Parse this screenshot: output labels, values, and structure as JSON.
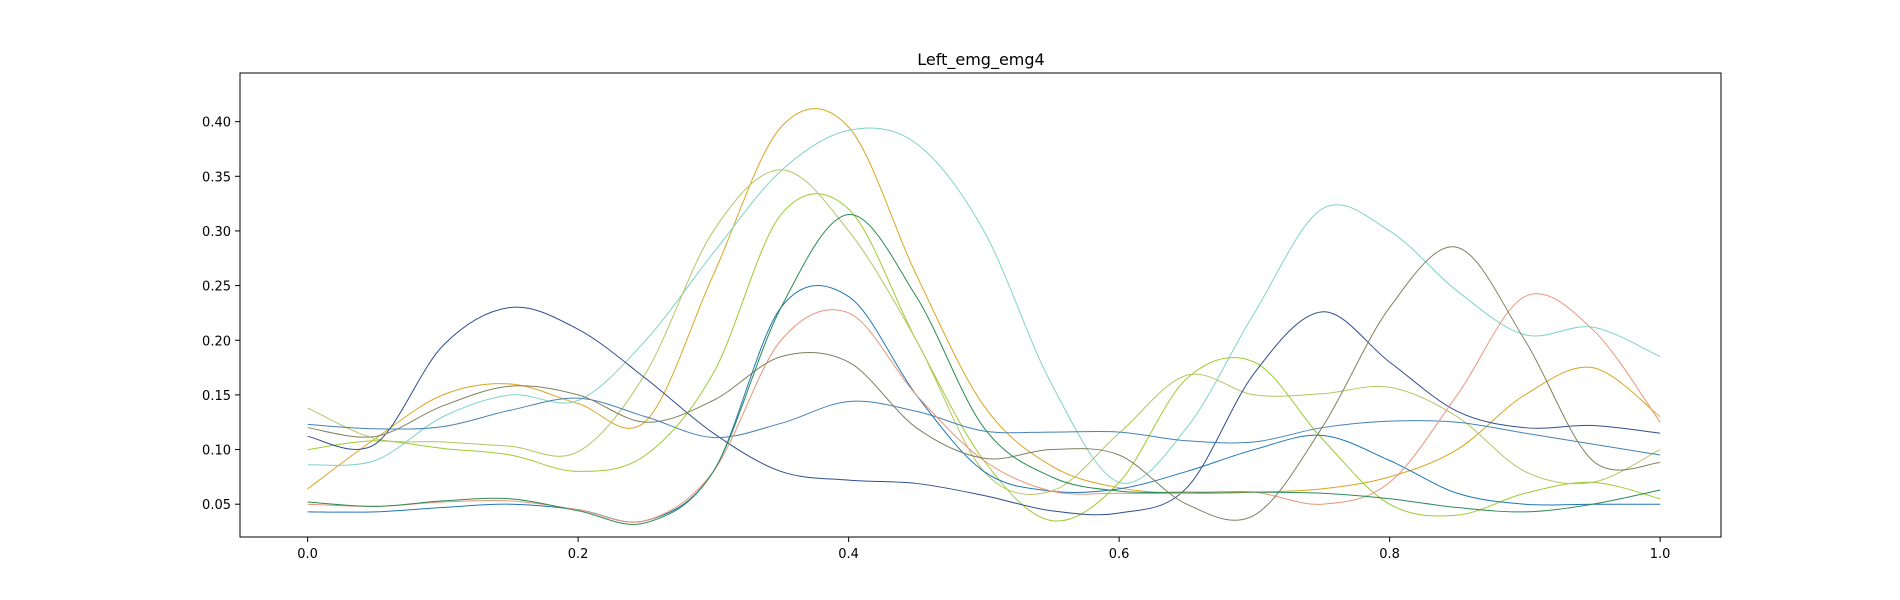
{
  "chart_data": {
    "type": "line",
    "title": "Left_emg_emg4",
    "xlabel": "",
    "ylabel": "",
    "xlim": [
      -0.05,
      1.045
    ],
    "ylim": [
      0.02,
      0.4445
    ],
    "x_ticks": [
      0.0,
      0.2,
      0.4,
      0.6,
      0.8,
      1.0
    ],
    "x_tick_labels": [
      "0.0",
      "0.2",
      "0.4",
      "0.6",
      "0.8",
      "1.0"
    ],
    "y_ticks": [
      0.05,
      0.1,
      0.15,
      0.2,
      0.25,
      0.3,
      0.35,
      0.4
    ],
    "y_tick_labels": [
      "0.05",
      "0.10",
      "0.15",
      "0.20",
      "0.25",
      "0.30",
      "0.35",
      "0.40"
    ],
    "grid": false,
    "legend": "none",
    "x": [
      0.0,
      0.05,
      0.1,
      0.15,
      0.2,
      0.25,
      0.3,
      0.35,
      0.4,
      0.45,
      0.5,
      0.55,
      0.6,
      0.65,
      0.7,
      0.75,
      0.8,
      0.85,
      0.9,
      0.95,
      1.0
    ],
    "series": [
      {
        "color": "#daa520",
        "values": [
          0.064,
          0.11,
          0.15,
          0.16,
          0.142,
          0.126,
          0.26,
          0.395,
          0.395,
          0.26,
          0.14,
          0.085,
          0.065,
          0.06,
          0.061,
          0.064,
          0.075,
          0.1,
          0.15,
          0.175,
          0.13
        ]
      },
      {
        "color": "#7fd3c8",
        "values": [
          0.086,
          0.09,
          0.13,
          0.15,
          0.145,
          0.2,
          0.28,
          0.355,
          0.392,
          0.38,
          0.3,
          0.16,
          0.07,
          0.12,
          0.225,
          0.32,
          0.3,
          0.245,
          0.205,
          0.212,
          0.185
        ]
      },
      {
        "color": "#9acd32",
        "values": [
          0.1,
          0.108,
          0.101,
          0.095,
          0.08,
          0.095,
          0.17,
          0.315,
          0.32,
          0.2,
          0.09,
          0.035,
          0.07,
          0.165,
          0.18,
          0.11,
          0.05,
          0.04,
          0.06,
          0.07,
          0.055
        ]
      },
      {
        "color": "#b5c463",
        "values": [
          0.138,
          0.11,
          0.107,
          0.103,
          0.098,
          0.17,
          0.3,
          0.356,
          0.3,
          0.2,
          0.08,
          0.062,
          0.115,
          0.168,
          0.15,
          0.151,
          0.157,
          0.13,
          0.08,
          0.07,
          0.1
        ]
      },
      {
        "color": "#1f77b4",
        "values": [
          0.043,
          0.043,
          0.047,
          0.05,
          0.045,
          0.035,
          0.08,
          0.23,
          0.24,
          0.15,
          0.08,
          0.062,
          0.064,
          0.08,
          0.1,
          0.113,
          0.09,
          0.06,
          0.05,
          0.05,
          0.05
        ]
      },
      {
        "color": "#2f4f8f",
        "values": [
          0.112,
          0.105,
          0.195,
          0.23,
          0.21,
          0.165,
          0.115,
          0.08,
          0.072,
          0.069,
          0.058,
          0.044,
          0.042,
          0.065,
          0.17,
          0.226,
          0.18,
          0.135,
          0.12,
          0.122,
          0.115
        ]
      },
      {
        "color": "#4682b4",
        "values": [
          0.123,
          0.119,
          0.121,
          0.136,
          0.147,
          0.13,
          0.111,
          0.124,
          0.144,
          0.135,
          0.117,
          0.116,
          0.116,
          0.108,
          0.107,
          0.12,
          0.126,
          0.125,
          0.115,
          0.105,
          0.095
        ]
      },
      {
        "color": "#e9967a",
        "values": [
          0.05,
          0.048,
          0.052,
          0.053,
          0.045,
          0.035,
          0.08,
          0.2,
          0.225,
          0.15,
          0.09,
          0.062,
          0.06,
          0.06,
          0.061,
          0.05,
          0.07,
          0.15,
          0.24,
          0.21,
          0.125
        ]
      },
      {
        "color": "#808060",
        "values": [
          0.12,
          0.112,
          0.14,
          0.158,
          0.15,
          0.125,
          0.145,
          0.185,
          0.18,
          0.12,
          0.092,
          0.1,
          0.095,
          0.05,
          0.04,
          0.12,
          0.23,
          0.285,
          0.2,
          0.09,
          0.088
        ]
      },
      {
        "color": "#2e8b57",
        "values": [
          0.052,
          0.048,
          0.053,
          0.055,
          0.044,
          0.033,
          0.08,
          0.23,
          0.315,
          0.24,
          0.12,
          0.075,
          0.062,
          0.061,
          0.061,
          0.06,
          0.055,
          0.047,
          0.043,
          0.05,
          0.063
        ]
      }
    ]
  }
}
